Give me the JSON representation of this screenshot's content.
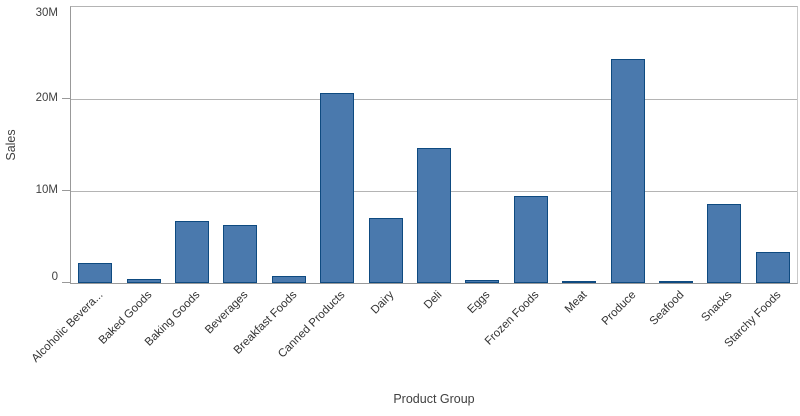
{
  "chart_data": {
    "type": "bar",
    "title": "",
    "xlabel": "Product Group",
    "ylabel": "Sales",
    "categories": [
      "Alcoholic Bevera...",
      "Baked Goods",
      "Baking Goods",
      "Beverages",
      "Breakfast Foods",
      "Canned Products",
      "Dairy",
      "Deli",
      "Eggs",
      "Frozen Foods",
      "Meat",
      "Produce",
      "Seafood",
      "Snacks",
      "Starchy Foods"
    ],
    "values": [
      2200000,
      450000,
      6750000,
      6350000,
      750000,
      20600000,
      7100000,
      14700000,
      300000,
      9500000,
      120000,
      24300000,
      130000,
      8600000,
      3400000
    ],
    "ylim": [
      0,
      30000000
    ],
    "yticks": [
      {
        "value": 0,
        "label": "0"
      },
      {
        "value": 10000000,
        "label": "10M"
      },
      {
        "value": 20000000,
        "label": "20M"
      },
      {
        "value": 30000000,
        "label": "30M"
      }
    ],
    "grid": true,
    "legend": false,
    "bar_fill_color": "#4a79ad",
    "bar_border_color": "#0e4a80",
    "axis_color": "#999999",
    "gridline_color": "#b4b4b4",
    "text_color": "#404040"
  }
}
